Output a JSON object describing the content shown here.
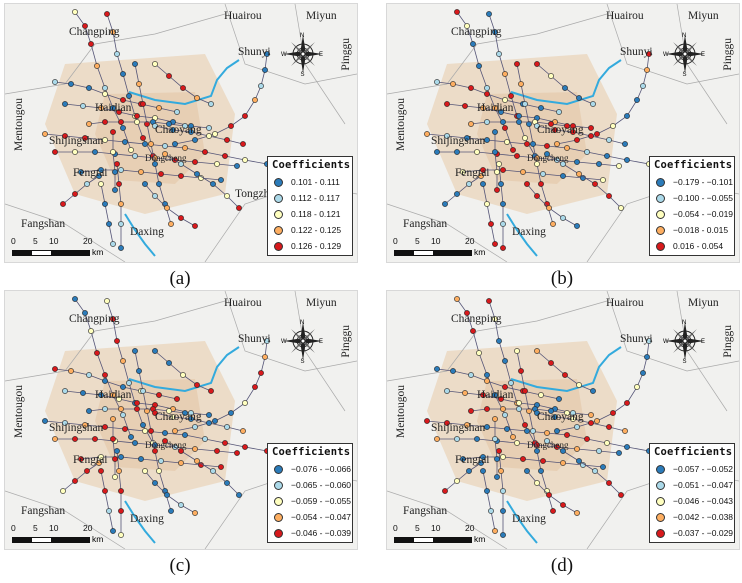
{
  "panels": [
    {
      "caption": "(a)",
      "legend_title": "Coefficients",
      "classes": [
        {
          "label": "0.101 - 0.111",
          "color": "#2b7bb9"
        },
        {
          "label": "0.112 - 0.117",
          "color": "#abd9e9"
        },
        {
          "label": "0.118 - 0.121",
          "color": "#ffffbf"
        },
        {
          "label": "0.122 - 0.125",
          "color": "#fdae61"
        },
        {
          "label": "0.126 - 0.129",
          "color": "#d7191c"
        }
      ],
      "palette_bias": 0
    },
    {
      "caption": "(b)",
      "legend_title": "Coefficients",
      "classes": [
        {
          "label": "−0.179 - −0.101",
          "color": "#2b7bb9"
        },
        {
          "label": "−0.100 - −0.055",
          "color": "#abd9e9"
        },
        {
          "label": "−0.054 - −0.019",
          "color": "#ffffbf"
        },
        {
          "label": "−0.018 - 0.015",
          "color": "#fdae61"
        },
        {
          "label": "0.016 - 0.054",
          "color": "#d7191c"
        }
      ],
      "palette_bias": 1
    },
    {
      "caption": "(c)",
      "legend_title": "Coefficients",
      "classes": [
        {
          "label": "−0.076 - −0.066",
          "color": "#2b7bb9"
        },
        {
          "label": "−0.065 - −0.060",
          "color": "#abd9e9"
        },
        {
          "label": "−0.059 - −0.055",
          "color": "#ffffbf"
        },
        {
          "label": "−0.054 - −0.047",
          "color": "#fdae61"
        },
        {
          "label": "−0.046 - −0.039",
          "color": "#d7191c"
        }
      ],
      "palette_bias": 2
    },
    {
      "caption": "(d)",
      "legend_title": "Coefficients",
      "classes": [
        {
          "label": "−0.057 - −0.052",
          "color": "#2b7bb9"
        },
        {
          "label": "−0.051 - −0.047",
          "color": "#abd9e9"
        },
        {
          "label": "−0.046 - −0.043",
          "color": "#ffffbf"
        },
        {
          "label": "−0.042 - −0.038",
          "color": "#fdae61"
        },
        {
          "label": "−0.037 - −0.029",
          "color": "#d7191c"
        }
      ],
      "palette_bias": 3
    }
  ],
  "place_names": {
    "huairou": "Huairou",
    "miyun": "Miyun",
    "changping": "Changping",
    "shunyi": "Shunyi",
    "pinggu": "Pinggu",
    "haidian": "Haidian",
    "chaoyang": "Chaoyang",
    "mentougou": "Mentougou",
    "shijingshan": "Shijingshan",
    "fengtai": "Fengtai",
    "dongcheng": "Dongcheng",
    "tongzhou": "Tongzhou",
    "tongzhou_cut": "Tongzh",
    "fangshan": "Fangshan",
    "daxing": "Daxing"
  },
  "compass": {
    "n": "N",
    "s": "S",
    "e": "E",
    "w": "W"
  },
  "scale": {
    "ticks": [
      "0",
      "5",
      "10",
      "20"
    ],
    "unit": "km"
  },
  "colors": {
    "airport_line": "#33aadd",
    "background": "#f1f1ef"
  }
}
